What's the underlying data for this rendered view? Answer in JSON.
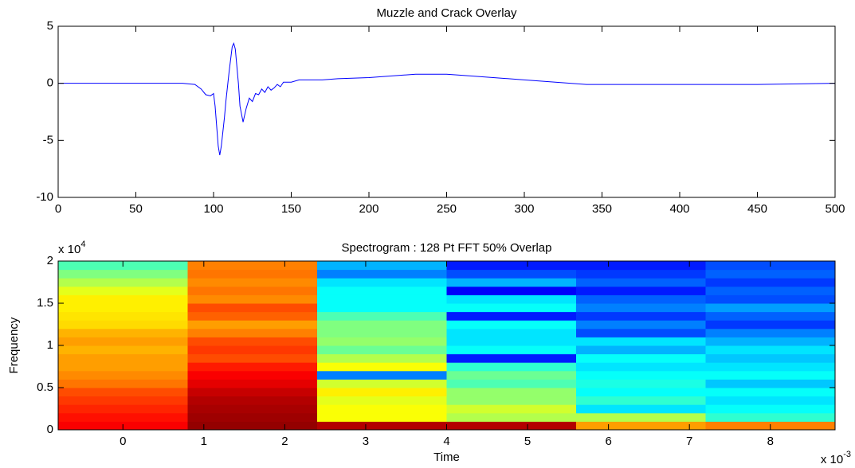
{
  "chart_data": [
    {
      "type": "line",
      "title": "Muzzle and Crack Overlay",
      "color": "#0000ff",
      "x": [
        0,
        80,
        88,
        92,
        95,
        98,
        100,
        101,
        103,
        104,
        105,
        107,
        108,
        110,
        112,
        113,
        114,
        116,
        117,
        119,
        121,
        123,
        125,
        127,
        129,
        131,
        133,
        135,
        137,
        139,
        141,
        143,
        145,
        150,
        155,
        160,
        170,
        180,
        200,
        220,
        230,
        240,
        250,
        260,
        280,
        300,
        320,
        340,
        360,
        400,
        450,
        500
      ],
      "values": [
        0,
        0,
        -0.1,
        -0.5,
        -1.0,
        -1.1,
        -0.9,
        -2,
        -5.5,
        -6.3,
        -5.5,
        -3,
        -1.5,
        1,
        3.2,
        3.5,
        3.0,
        0,
        -2,
        -3.4,
        -2.2,
        -1.3,
        -1.6,
        -0.9,
        -1.0,
        -0.5,
        -0.8,
        -0.3,
        -0.6,
        -0.4,
        -0.1,
        -0.3,
        0.1,
        0.1,
        0.3,
        0.3,
        0.3,
        0.4,
        0.5,
        0.7,
        0.8,
        0.8,
        0.8,
        0.7,
        0.5,
        0.3,
        0.1,
        -0.1,
        -0.1,
        -0.1,
        -0.1,
        0
      ],
      "xlim": [
        0,
        500
      ],
      "xticks": [
        0,
        50,
        100,
        150,
        200,
        250,
        300,
        350,
        400,
        450,
        500
      ],
      "ylim": [
        -10,
        5
      ],
      "yticks": [
        -10,
        -5,
        0,
        5
      ]
    },
    {
      "type": "heatmap",
      "title": "Spectrogram : 128 Pt FFT 50% Overlap",
      "x_label": "Time",
      "y_label": "Frequency",
      "x_multiplier": {
        "base": "x 10",
        "exponent": "-3"
      },
      "y_multiplier": {
        "base": "x 10",
        "exponent": "4"
      },
      "x_edges": [
        -0.8,
        0.8,
        2.4,
        4.0,
        5.6,
        7.2,
        8.8
      ],
      "y_edges": [
        0,
        0.1,
        0.2,
        0.3,
        0.4,
        0.5,
        0.6,
        0.7,
        0.8,
        0.9,
        1.0,
        1.1,
        1.2,
        1.3,
        1.4,
        1.5,
        1.6,
        1.7,
        1.8,
        1.9,
        2.0
      ],
      "z": [
        [
          0.88,
          0.86,
          0.84,
          0.82,
          0.8,
          0.76,
          0.74,
          0.72,
          0.72,
          0.7,
          0.72,
          0.7,
          0.66,
          0.65,
          0.64,
          0.64,
          0.6,
          0.55,
          0.5,
          0.45
        ],
        [
          0.98,
          0.97,
          0.96,
          0.95,
          0.93,
          0.9,
          0.88,
          0.85,
          0.8,
          0.82,
          0.8,
          0.75,
          0.72,
          0.78,
          0.8,
          0.74,
          0.76,
          0.74,
          0.76,
          0.75
        ],
        [
          0.95,
          0.62,
          0.62,
          0.6,
          0.64,
          0.58,
          0.25,
          0.62,
          0.55,
          0.48,
          0.52,
          0.5,
          0.5,
          0.45,
          0.38,
          0.38,
          0.38,
          0.35,
          0.25,
          0.3
        ],
        [
          0.95,
          0.55,
          0.58,
          0.52,
          0.52,
          0.45,
          0.48,
          0.42,
          0.15,
          0.38,
          0.35,
          0.35,
          0.38,
          0.15,
          0.38,
          0.35,
          0.12,
          0.3,
          0.2,
          0.15
        ],
        [
          0.72,
          0.55,
          0.35,
          0.42,
          0.38,
          0.4,
          0.38,
          0.35,
          0.38,
          0.3,
          0.35,
          0.2,
          0.25,
          0.18,
          0.25,
          0.22,
          0.15,
          0.22,
          0.18,
          0.15
        ],
        [
          0.75,
          0.42,
          0.38,
          0.35,
          0.38,
          0.32,
          0.38,
          0.35,
          0.32,
          0.35,
          0.3,
          0.25,
          0.18,
          0.22,
          0.28,
          0.2,
          0.22,
          0.18,
          0.22,
          0.2
        ]
      ],
      "xlim": [
        -0.8,
        8.8
      ],
      "xticks": [
        0,
        1,
        2,
        3,
        4,
        5,
        6,
        7,
        8
      ],
      "ylim": [
        0,
        2
      ],
      "yticks": [
        0,
        0.5,
        1,
        1.5,
        2
      ]
    }
  ]
}
